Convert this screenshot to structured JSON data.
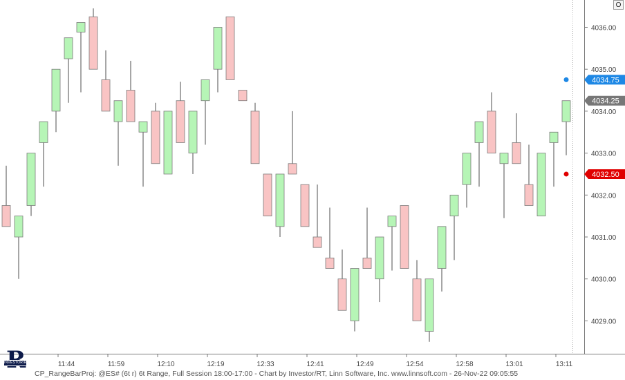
{
  "footer": {
    "text": "CP_RangeBarProj: @ES# (6t r) 6t Range, Full Session 18:00-17:00 - Chart by Investor/RT, Linn Software, Inc. www.linnsoft.com - 26-Nov-22 09:05:55"
  },
  "controls": {
    "o_button_label": "O"
  },
  "logo": {
    "letter": "R",
    "band_text": "INVESTOR/RT"
  },
  "chart_data": {
    "type": "candlestick",
    "title": "",
    "xlabel": "",
    "ylabel": "",
    "ylim": [
      4028.4,
      4036.6
    ],
    "grid": false,
    "colors": {
      "up": "#b6f5b6",
      "down": "#f9c4c4",
      "wick": "#888888",
      "border": "#7a7a7a"
    },
    "y_ticks": [
      {
        "value": 4029.0,
        "label": "4029.00"
      },
      {
        "value": 4030.0,
        "label": "4030.00"
      },
      {
        "value": 4031.0,
        "label": "4031.00"
      },
      {
        "value": 4032.0,
        "label": "4032.00"
      },
      {
        "value": 4033.0,
        "label": "4033.00"
      },
      {
        "value": 4034.0,
        "label": "4034.00"
      },
      {
        "value": 4035.0,
        "label": "4035.00"
      },
      {
        "value": 4036.0,
        "label": "4036.00"
      }
    ],
    "x_ticks": [
      {
        "bar": 4,
        "label": "11:44"
      },
      {
        "bar": 8,
        "label": "11:59"
      },
      {
        "bar": 12,
        "label": "12:10"
      },
      {
        "bar": 16,
        "label": "12:19"
      },
      {
        "bar": 20,
        "label": "12:33"
      },
      {
        "bar": 24,
        "label": "12:41"
      },
      {
        "bar": 28,
        "label": "12:49"
      },
      {
        "bar": 32,
        "label": "12:54"
      },
      {
        "bar": 36,
        "label": "12:58"
      },
      {
        "bar": 40,
        "label": "13:01"
      },
      {
        "bar": 44,
        "label": "13:11"
      }
    ],
    "candles": [
      {
        "o": 4031.75,
        "h": 4031.75,
        "l": 4031.25,
        "c": 4031.25,
        "wl": 4031.25,
        "wh": 4032.7
      },
      {
        "o": 4031.0,
        "h": 4031.5,
        "l": 4031.0,
        "c": 4031.5,
        "wl": 4030.0,
        "wh": 4031.5
      },
      {
        "o": 4031.75,
        "h": 4033.0,
        "l": 4031.75,
        "c": 4033.0,
        "wl": 4031.5,
        "wh": 4033.0
      },
      {
        "o": 4033.25,
        "h": 4033.75,
        "l": 4033.25,
        "c": 4033.75,
        "wl": 4032.2,
        "wh": 4033.75
      },
      {
        "o": 4034.0,
        "h": 4035.0,
        "l": 4034.0,
        "c": 4035.0,
        "wl": 4033.5,
        "wh": 4035.0
      },
      {
        "o": 4035.25,
        "h": 4035.75,
        "l": 4035.25,
        "c": 4035.75,
        "wl": 4034.2,
        "wh": 4035.75
      },
      {
        "o": 4036.0,
        "h": 4036.0,
        "l": 4036.0,
        "c": 4036.0,
        "wl": 4034.45,
        "wh": 4036.0
      },
      {
        "o": 4036.25,
        "h": 4036.25,
        "l": 4035.0,
        "c": 4035.0,
        "wl": 4035.0,
        "wh": 4036.45
      },
      {
        "o": 4034.75,
        "h": 4034.75,
        "l": 4034.0,
        "c": 4034.0,
        "wl": 4034.0,
        "wh": 4035.45
      },
      {
        "o": 4033.75,
        "h": 4034.25,
        "l": 4033.75,
        "c": 4034.25,
        "wl": 4032.7,
        "wh": 4034.25
      },
      {
        "o": 4034.5,
        "h": 4034.5,
        "l": 4033.75,
        "c": 4033.75,
        "wl": 4033.75,
        "wh": 4035.2
      },
      {
        "o": 4033.5,
        "h": 4033.75,
        "l": 4033.5,
        "c": 4033.75,
        "wl": 4032.2,
        "wh": 4033.75
      },
      {
        "o": 4034.0,
        "h": 4034.0,
        "l": 4032.75,
        "c": 4032.75,
        "wl": 4032.75,
        "wh": 4034.2
      },
      {
        "o": 4032.5,
        "h": 4034.0,
        "l": 4032.5,
        "c": 4034.0,
        "wl": 4032.5,
        "wh": 4034.0
      },
      {
        "o": 4034.25,
        "h": 4034.25,
        "l": 4033.25,
        "c": 4033.25,
        "wl": 4033.25,
        "wh": 4034.7
      },
      {
        "o": 4033.0,
        "h": 4034.0,
        "l": 4033.0,
        "c": 4034.0,
        "wl": 4032.5,
        "wh": 4034.0
      },
      {
        "o": 4034.25,
        "h": 4034.75,
        "l": 4034.25,
        "c": 4034.75,
        "wl": 4033.2,
        "wh": 4034.75
      },
      {
        "o": 4035.0,
        "h": 4036.0,
        "l": 4035.0,
        "c": 4036.0,
        "wl": 4034.45,
        "wh": 4036.0
      },
      {
        "o": 4036.25,
        "h": 4036.25,
        "l": 4034.75,
        "c": 4034.75,
        "wl": 4034.75,
        "wh": 4036.25
      },
      {
        "o": 4034.5,
        "h": 4034.5,
        "l": 4034.25,
        "c": 4034.25,
        "wl": 4034.25,
        "wh": 4034.5
      },
      {
        "o": 4034.0,
        "h": 4034.0,
        "l": 4032.75,
        "c": 4032.75,
        "wl": 4032.75,
        "wh": 4034.2
      },
      {
        "o": 4032.5,
        "h": 4032.5,
        "l": 4031.5,
        "c": 4031.5,
        "wl": 4031.5,
        "wh": 4032.5
      },
      {
        "o": 4031.25,
        "h": 4032.5,
        "l": 4031.25,
        "c": 4032.5,
        "wl": 4031.0,
        "wh": 4032.5
      },
      {
        "o": 4032.75,
        "h": 4032.75,
        "l": 4032.5,
        "c": 4032.5,
        "wl": 4032.5,
        "wh": 4034.0
      },
      {
        "o": 4032.25,
        "h": 4032.25,
        "l": 4031.25,
        "c": 4031.25,
        "wl": 4031.25,
        "wh": 4032.25
      },
      {
        "o": 4031.0,
        "h": 4031.0,
        "l": 4030.75,
        "c": 4030.75,
        "wl": 4030.75,
        "wh": 4032.25
      },
      {
        "o": 4030.5,
        "h": 4030.5,
        "l": 4030.25,
        "c": 4030.25,
        "wl": 4030.25,
        "wh": 4031.7
      },
      {
        "o": 4030.0,
        "h": 4030.0,
        "l": 4029.25,
        "c": 4029.25,
        "wl": 4029.25,
        "wh": 4030.7
      },
      {
        "o": 4029.0,
        "h": 4030.25,
        "l": 4029.0,
        "c": 4030.25,
        "wl": 4028.75,
        "wh": 4030.25
      },
      {
        "o": 4030.5,
        "h": 4030.5,
        "l": 4030.25,
        "c": 4030.25,
        "wl": 4030.25,
        "wh": 4031.7
      },
      {
        "o": 4030.0,
        "h": 4031.0,
        "l": 4030.0,
        "c": 4031.0,
        "wl": 4029.45,
        "wh": 4031.0
      },
      {
        "o": 4031.25,
        "h": 4031.5,
        "l": 4031.25,
        "c": 4031.5,
        "wl": 4030.2,
        "wh": 4031.5
      },
      {
        "o": 4031.75,
        "h": 4031.75,
        "l": 4030.25,
        "c": 4030.25,
        "wl": 4030.25,
        "wh": 4031.75
      },
      {
        "o": 4030.0,
        "h": 4030.0,
        "l": 4029.0,
        "c": 4029.0,
        "wl": 4029.0,
        "wh": 4030.45
      },
      {
        "o": 4028.75,
        "h": 4030.0,
        "l": 4028.75,
        "c": 4030.0,
        "wl": 4028.5,
        "wh": 4030.0
      },
      {
        "o": 4030.25,
        "h": 4031.25,
        "l": 4030.25,
        "c": 4031.25,
        "wl": 4029.7,
        "wh": 4031.25
      },
      {
        "o": 4031.5,
        "h": 4032.0,
        "l": 4031.5,
        "c": 4032.0,
        "wl": 4030.45,
        "wh": 4032.0
      },
      {
        "o": 4032.25,
        "h": 4033.0,
        "l": 4032.25,
        "c": 4033.0,
        "wl": 4031.7,
        "wh": 4033.0
      },
      {
        "o": 4033.25,
        "h": 4033.75,
        "l": 4033.25,
        "c": 4033.75,
        "wl": 4032.2,
        "wh": 4033.75
      },
      {
        "o": 4034.0,
        "h": 4034.0,
        "l": 4033.0,
        "c": 4033.0,
        "wl": 4033.0,
        "wh": 4034.45
      },
      {
        "o": 4032.75,
        "h": 4033.0,
        "l": 4032.75,
        "c": 4033.0,
        "wl": 4031.45,
        "wh": 4033.0
      },
      {
        "o": 4033.25,
        "h": 4033.25,
        "l": 4032.75,
        "c": 4032.75,
        "wl": 4032.75,
        "wh": 4033.95
      },
      {
        "o": 4032.25,
        "h": 4032.25,
        "l": 4031.75,
        "c": 4031.75,
        "wl": 4031.75,
        "wh": 4033.2
      },
      {
        "o": 4031.5,
        "h": 4033.0,
        "l": 4031.5,
        "c": 4033.0,
        "wl": 4031.5,
        "wh": 4033.0
      },
      {
        "o": 4033.25,
        "h": 4033.5,
        "l": 4033.25,
        "c": 4033.5,
        "wl": 4032.2,
        "wh": 4033.5
      },
      {
        "o": 4033.75,
        "h": 4034.25,
        "l": 4033.75,
        "c": 4034.25,
        "wl": 4032.95,
        "wh": 4034.25
      }
    ],
    "markers": [
      {
        "value": 4034.75,
        "label": "4034.75",
        "color": "#1e88e5"
      },
      {
        "value": 4034.25,
        "label": "4034.25",
        "color": "#777777"
      },
      {
        "value": 4032.5,
        "label": "4032.50",
        "color": "#e00000"
      }
    ]
  }
}
